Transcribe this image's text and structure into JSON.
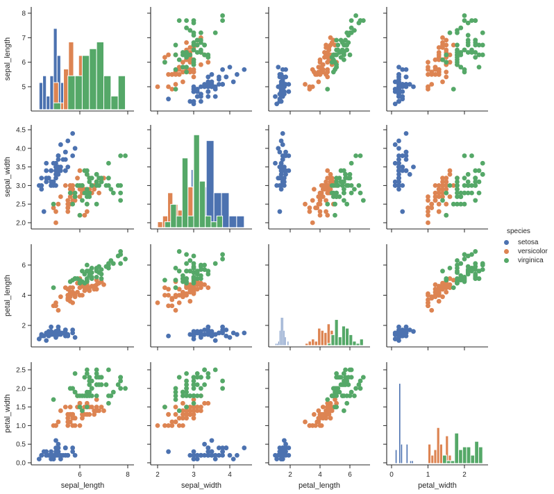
{
  "figure": {
    "type": "pairplot",
    "legend": {
      "title": "species",
      "items": [
        {
          "label": "setosa",
          "color": "#4C72B0"
        },
        {
          "label": "versicolor",
          "color": "#DD8452"
        },
        {
          "label": "virginica",
          "color": "#55A868"
        }
      ]
    }
  },
  "chart_data": {
    "type": "scatter",
    "title": "",
    "layout": "pairplot 4x4 (off-diagonal scatter, diagonal histograms per species)",
    "variables": [
      "sepal_length",
      "sepal_width",
      "petal_length",
      "petal_width"
    ],
    "hue": "species",
    "species": [
      "setosa",
      "versicolor",
      "virginica"
    ],
    "colors": {
      "setosa": "#4C72B0",
      "versicolor": "#DD8452",
      "virginica": "#55A868"
    },
    "axes": {
      "sepal_length": {
        "ticks": [
          5,
          6,
          7,
          8
        ],
        "xticks": [
          6,
          8
        ],
        "range": [
          4.1,
          8.2
        ]
      },
      "sepal_width": {
        "ticks": [
          2.0,
          2.5,
          3.0,
          3.5,
          4.0,
          4.5
        ],
        "xticks": [
          2,
          3,
          4
        ],
        "range": [
          1.85,
          4.55
        ]
      },
      "petal_length": {
        "ticks": [
          2,
          4,
          6
        ],
        "xticks": [
          2,
          4,
          6
        ],
        "range": [
          0.7,
          7.2
        ]
      },
      "petal_width": {
        "ticks": [
          0.0,
          0.5,
          1.0,
          1.5,
          2.0,
          2.5
        ],
        "xticks": [
          0,
          1,
          2
        ],
        "range": [
          -0.1,
          2.65
        ]
      }
    },
    "grid": false,
    "legend_position": "right",
    "rows": [
      [
        5.1,
        3.5,
        1.4,
        0.2,
        0
      ],
      [
        4.9,
        3.0,
        1.4,
        0.2,
        0
      ],
      [
        4.7,
        3.2,
        1.3,
        0.2,
        0
      ],
      [
        4.6,
        3.1,
        1.5,
        0.2,
        0
      ],
      [
        5.0,
        3.6,
        1.4,
        0.2,
        0
      ],
      [
        5.4,
        3.9,
        1.7,
        0.4,
        0
      ],
      [
        4.6,
        3.4,
        1.4,
        0.3,
        0
      ],
      [
        5.0,
        3.4,
        1.5,
        0.2,
        0
      ],
      [
        4.4,
        2.9,
        1.4,
        0.2,
        0
      ],
      [
        4.9,
        3.1,
        1.5,
        0.1,
        0
      ],
      [
        5.4,
        3.7,
        1.5,
        0.2,
        0
      ],
      [
        4.8,
        3.4,
        1.6,
        0.2,
        0
      ],
      [
        4.8,
        3.0,
        1.4,
        0.1,
        0
      ],
      [
        4.3,
        3.0,
        1.1,
        0.1,
        0
      ],
      [
        5.8,
        4.0,
        1.2,
        0.2,
        0
      ],
      [
        5.7,
        4.4,
        1.5,
        0.4,
        0
      ],
      [
        5.4,
        3.9,
        1.3,
        0.4,
        0
      ],
      [
        5.1,
        3.5,
        1.4,
        0.3,
        0
      ],
      [
        5.7,
        3.8,
        1.7,
        0.3,
        0
      ],
      [
        5.1,
        3.8,
        1.5,
        0.3,
        0
      ],
      [
        5.4,
        3.4,
        1.7,
        0.2,
        0
      ],
      [
        5.1,
        3.7,
        1.5,
        0.4,
        0
      ],
      [
        4.6,
        3.6,
        1.0,
        0.2,
        0
      ],
      [
        5.1,
        3.3,
        1.7,
        0.5,
        0
      ],
      [
        4.8,
        3.4,
        1.9,
        0.2,
        0
      ],
      [
        5.0,
        3.0,
        1.6,
        0.2,
        0
      ],
      [
        5.0,
        3.4,
        1.6,
        0.4,
        0
      ],
      [
        5.2,
        3.5,
        1.5,
        0.2,
        0
      ],
      [
        5.2,
        3.4,
        1.4,
        0.2,
        0
      ],
      [
        4.7,
        3.2,
        1.6,
        0.2,
        0
      ],
      [
        4.8,
        3.1,
        1.6,
        0.2,
        0
      ],
      [
        5.4,
        3.4,
        1.5,
        0.4,
        0
      ],
      [
        5.2,
        4.1,
        1.5,
        0.1,
        0
      ],
      [
        5.5,
        4.2,
        1.4,
        0.2,
        0
      ],
      [
        4.9,
        3.1,
        1.5,
        0.2,
        0
      ],
      [
        5.0,
        3.2,
        1.2,
        0.2,
        0
      ],
      [
        5.5,
        3.5,
        1.3,
        0.2,
        0
      ],
      [
        4.9,
        3.6,
        1.4,
        0.1,
        0
      ],
      [
        4.4,
        3.0,
        1.3,
        0.2,
        0
      ],
      [
        5.1,
        3.4,
        1.5,
        0.2,
        0
      ],
      [
        5.0,
        3.5,
        1.3,
        0.3,
        0
      ],
      [
        4.5,
        2.3,
        1.3,
        0.3,
        0
      ],
      [
        4.4,
        3.2,
        1.3,
        0.2,
        0
      ],
      [
        5.0,
        3.5,
        1.6,
        0.6,
        0
      ],
      [
        5.1,
        3.8,
        1.9,
        0.4,
        0
      ],
      [
        4.8,
        3.0,
        1.4,
        0.3,
        0
      ],
      [
        5.1,
        3.8,
        1.6,
        0.2,
        0
      ],
      [
        4.6,
        3.2,
        1.4,
        0.2,
        0
      ],
      [
        5.3,
        3.7,
        1.5,
        0.2,
        0
      ],
      [
        5.0,
        3.3,
        1.4,
        0.2,
        0
      ],
      [
        7.0,
        3.2,
        4.7,
        1.4,
        1
      ],
      [
        6.4,
        3.2,
        4.5,
        1.5,
        1
      ],
      [
        6.9,
        3.1,
        4.9,
        1.5,
        1
      ],
      [
        5.5,
        2.3,
        4.0,
        1.3,
        1
      ],
      [
        6.5,
        2.8,
        4.6,
        1.5,
        1
      ],
      [
        5.7,
        2.8,
        4.5,
        1.3,
        1
      ],
      [
        6.3,
        3.3,
        4.7,
        1.6,
        1
      ],
      [
        4.9,
        2.4,
        3.3,
        1.0,
        1
      ],
      [
        6.6,
        2.9,
        4.6,
        1.3,
        1
      ],
      [
        5.2,
        2.7,
        3.9,
        1.4,
        1
      ],
      [
        5.0,
        2.0,
        3.5,
        1.0,
        1
      ],
      [
        5.9,
        3.0,
        4.2,
        1.5,
        1
      ],
      [
        6.0,
        2.2,
        4.0,
        1.0,
        1
      ],
      [
        6.1,
        2.9,
        4.7,
        1.4,
        1
      ],
      [
        5.6,
        2.9,
        3.6,
        1.3,
        1
      ],
      [
        6.7,
        3.1,
        4.4,
        1.4,
        1
      ],
      [
        5.6,
        3.0,
        4.5,
        1.5,
        1
      ],
      [
        5.8,
        2.7,
        4.1,
        1.0,
        1
      ],
      [
        6.2,
        2.2,
        4.5,
        1.5,
        1
      ],
      [
        5.6,
        2.5,
        3.9,
        1.1,
        1
      ],
      [
        5.9,
        3.2,
        4.8,
        1.8,
        1
      ],
      [
        6.1,
        2.8,
        4.0,
        1.3,
        1
      ],
      [
        6.3,
        2.5,
        4.9,
        1.5,
        1
      ],
      [
        6.1,
        2.8,
        4.7,
        1.2,
        1
      ],
      [
        6.4,
        2.9,
        4.3,
        1.3,
        1
      ],
      [
        6.6,
        3.0,
        4.4,
        1.4,
        1
      ],
      [
        6.8,
        2.8,
        4.8,
        1.4,
        1
      ],
      [
        6.7,
        3.0,
        5.0,
        1.7,
        1
      ],
      [
        6.0,
        2.9,
        4.5,
        1.5,
        1
      ],
      [
        5.7,
        2.6,
        3.5,
        1.0,
        1
      ],
      [
        5.5,
        2.4,
        3.8,
        1.1,
        1
      ],
      [
        5.5,
        2.4,
        3.7,
        1.0,
        1
      ],
      [
        5.8,
        2.7,
        3.9,
        1.2,
        1
      ],
      [
        6.0,
        2.7,
        5.1,
        1.6,
        1
      ],
      [
        5.4,
        3.0,
        4.5,
        1.5,
        1
      ],
      [
        6.0,
        3.4,
        4.5,
        1.6,
        1
      ],
      [
        6.7,
        3.1,
        4.7,
        1.5,
        1
      ],
      [
        6.3,
        2.3,
        4.4,
        1.3,
        1
      ],
      [
        5.6,
        3.0,
        4.1,
        1.3,
        1
      ],
      [
        5.5,
        2.5,
        4.0,
        1.3,
        1
      ],
      [
        5.5,
        2.6,
        4.4,
        1.2,
        1
      ],
      [
        6.1,
        3.0,
        4.6,
        1.4,
        1
      ],
      [
        5.8,
        2.6,
        4.0,
        1.2,
        1
      ],
      [
        5.0,
        2.3,
        3.3,
        1.0,
        1
      ],
      [
        5.6,
        2.7,
        4.2,
        1.3,
        1
      ],
      [
        5.7,
        3.0,
        4.2,
        1.2,
        1
      ],
      [
        5.7,
        2.9,
        4.2,
        1.3,
        1
      ],
      [
        6.2,
        2.9,
        4.3,
        1.3,
        1
      ],
      [
        5.1,
        2.5,
        3.0,
        1.1,
        1
      ],
      [
        5.7,
        2.8,
        4.1,
        1.3,
        1
      ],
      [
        6.3,
        3.3,
        6.0,
        2.5,
        2
      ],
      [
        5.8,
        2.7,
        5.1,
        1.9,
        2
      ],
      [
        7.1,
        3.0,
        5.9,
        2.1,
        2
      ],
      [
        6.3,
        2.9,
        5.6,
        1.8,
        2
      ],
      [
        6.5,
        3.0,
        5.8,
        2.2,
        2
      ],
      [
        7.6,
        3.0,
        6.6,
        2.1,
        2
      ],
      [
        4.9,
        2.5,
        4.5,
        1.7,
        2
      ],
      [
        7.3,
        2.9,
        6.3,
        1.8,
        2
      ],
      [
        6.7,
        2.5,
        5.8,
        1.8,
        2
      ],
      [
        7.2,
        3.6,
        6.1,
        2.5,
        2
      ],
      [
        6.5,
        3.2,
        5.1,
        2.0,
        2
      ],
      [
        6.4,
        2.7,
        5.3,
        1.9,
        2
      ],
      [
        6.8,
        3.0,
        5.5,
        2.1,
        2
      ],
      [
        5.7,
        2.5,
        5.0,
        2.0,
        2
      ],
      [
        5.8,
        2.8,
        5.1,
        2.4,
        2
      ],
      [
        6.4,
        3.2,
        5.3,
        2.3,
        2
      ],
      [
        6.5,
        3.0,
        5.5,
        1.8,
        2
      ],
      [
        7.7,
        3.8,
        6.7,
        2.2,
        2
      ],
      [
        7.7,
        2.6,
        6.9,
        2.3,
        2
      ],
      [
        6.0,
        2.2,
        5.0,
        1.5,
        2
      ],
      [
        6.9,
        3.2,
        5.7,
        2.3,
        2
      ],
      [
        5.6,
        2.8,
        4.9,
        2.0,
        2
      ],
      [
        7.7,
        2.8,
        6.7,
        2.0,
        2
      ],
      [
        6.3,
        2.7,
        4.9,
        1.8,
        2
      ],
      [
        6.7,
        3.3,
        5.7,
        2.1,
        2
      ],
      [
        7.2,
        3.2,
        6.0,
        1.8,
        2
      ],
      [
        6.2,
        2.8,
        4.8,
        1.8,
        2
      ],
      [
        6.1,
        3.0,
        4.9,
        1.8,
        2
      ],
      [
        6.4,
        2.8,
        5.6,
        2.1,
        2
      ],
      [
        7.2,
        3.0,
        5.8,
        1.6,
        2
      ],
      [
        7.4,
        2.8,
        6.1,
        1.9,
        2
      ],
      [
        7.9,
        3.8,
        6.4,
        2.0,
        2
      ],
      [
        6.4,
        2.8,
        5.6,
        2.2,
        2
      ],
      [
        6.3,
        2.8,
        5.1,
        1.5,
        2
      ],
      [
        6.1,
        2.6,
        5.6,
        1.4,
        2
      ],
      [
        7.7,
        3.0,
        6.1,
        2.3,
        2
      ],
      [
        6.3,
        3.4,
        5.6,
        2.4,
        2
      ],
      [
        6.4,
        3.1,
        5.5,
        1.8,
        2
      ],
      [
        6.0,
        3.0,
        4.8,
        1.8,
        2
      ],
      [
        6.9,
        3.1,
        5.4,
        2.1,
        2
      ],
      [
        6.7,
        3.1,
        5.6,
        2.4,
        2
      ],
      [
        6.9,
        3.1,
        5.1,
        2.3,
        2
      ],
      [
        5.8,
        2.7,
        5.1,
        1.9,
        2
      ],
      [
        6.8,
        3.2,
        5.9,
        2.3,
        2
      ],
      [
        6.7,
        3.3,
        5.7,
        2.5,
        2
      ],
      [
        6.7,
        3.0,
        5.2,
        2.3,
        2
      ],
      [
        6.3,
        2.5,
        5.0,
        1.9,
        2
      ],
      [
        6.5,
        3.0,
        5.2,
        2.0,
        2
      ],
      [
        6.2,
        3.4,
        5.4,
        2.3,
        2
      ],
      [
        5.9,
        3.0,
        5.1,
        1.8,
        2
      ]
    ]
  }
}
